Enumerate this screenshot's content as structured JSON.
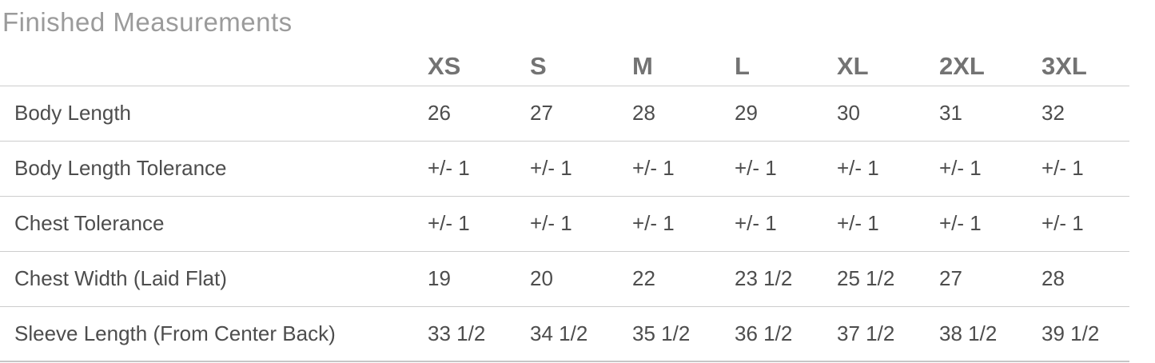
{
  "title": "Finished Measurements",
  "colors": {
    "title_text": "#9b9b9b",
    "header_text": "#737373",
    "body_text": "#4d4d4d",
    "separator_line": "#cdcdcd",
    "bottom_line": "#c6c6c6",
    "background": "#ffffff"
  },
  "chart_data": {
    "type": "table",
    "title": "Finished Measurements",
    "columns": [
      "XS",
      "S",
      "M",
      "L",
      "XL",
      "2XL",
      "3XL"
    ],
    "rows": [
      {
        "label": "Body Length",
        "values": [
          "26",
          "27",
          "28",
          "29",
          "30",
          "31",
          "32"
        ]
      },
      {
        "label": "Body Length Tolerance",
        "values": [
          "+/- 1",
          "+/- 1",
          "+/- 1",
          "+/- 1",
          "+/- 1",
          "+/- 1",
          "+/- 1"
        ]
      },
      {
        "label": "Chest Tolerance",
        "values": [
          "+/- 1",
          "+/- 1",
          "+/- 1",
          "+/- 1",
          "+/- 1",
          "+/- 1",
          "+/- 1"
        ]
      },
      {
        "label": "Chest Width (Laid Flat)",
        "values": [
          "19",
          "20",
          "22",
          "23 1/2",
          "25 1/2",
          "27",
          "28"
        ]
      },
      {
        "label": "Sleeve Length (From Center Back)",
        "values": [
          "33 1/2",
          "34 1/2",
          "35 1/2",
          "36 1/2",
          "37 1/2",
          "38 1/2",
          "39 1/2"
        ]
      }
    ]
  },
  "table": {
    "columns": [
      "XS",
      "S",
      "M",
      "L",
      "XL",
      "2XL",
      "3XL"
    ],
    "rows": [
      {
        "label": "Body Length",
        "values": [
          "26",
          "27",
          "28",
          "29",
          "30",
          "31",
          "32"
        ]
      },
      {
        "label": "Body Length Tolerance",
        "values": [
          "+/- 1",
          "+/- 1",
          "+/- 1",
          "+/- 1",
          "+/- 1",
          "+/- 1",
          "+/- 1"
        ]
      },
      {
        "label": "Chest Tolerance",
        "values": [
          "+/- 1",
          "+/- 1",
          "+/- 1",
          "+/- 1",
          "+/- 1",
          "+/- 1",
          "+/- 1"
        ]
      },
      {
        "label": "Chest Width (Laid Flat)",
        "values": [
          "19",
          "20",
          "22",
          "23 1/2",
          "25 1/2",
          "27",
          "28"
        ]
      },
      {
        "label": "Sleeve Length (From Center Back)",
        "values": [
          "33 1/2",
          "34 1/2",
          "35 1/2",
          "36 1/2",
          "37 1/2",
          "38 1/2",
          "39 1/2"
        ]
      }
    ]
  }
}
